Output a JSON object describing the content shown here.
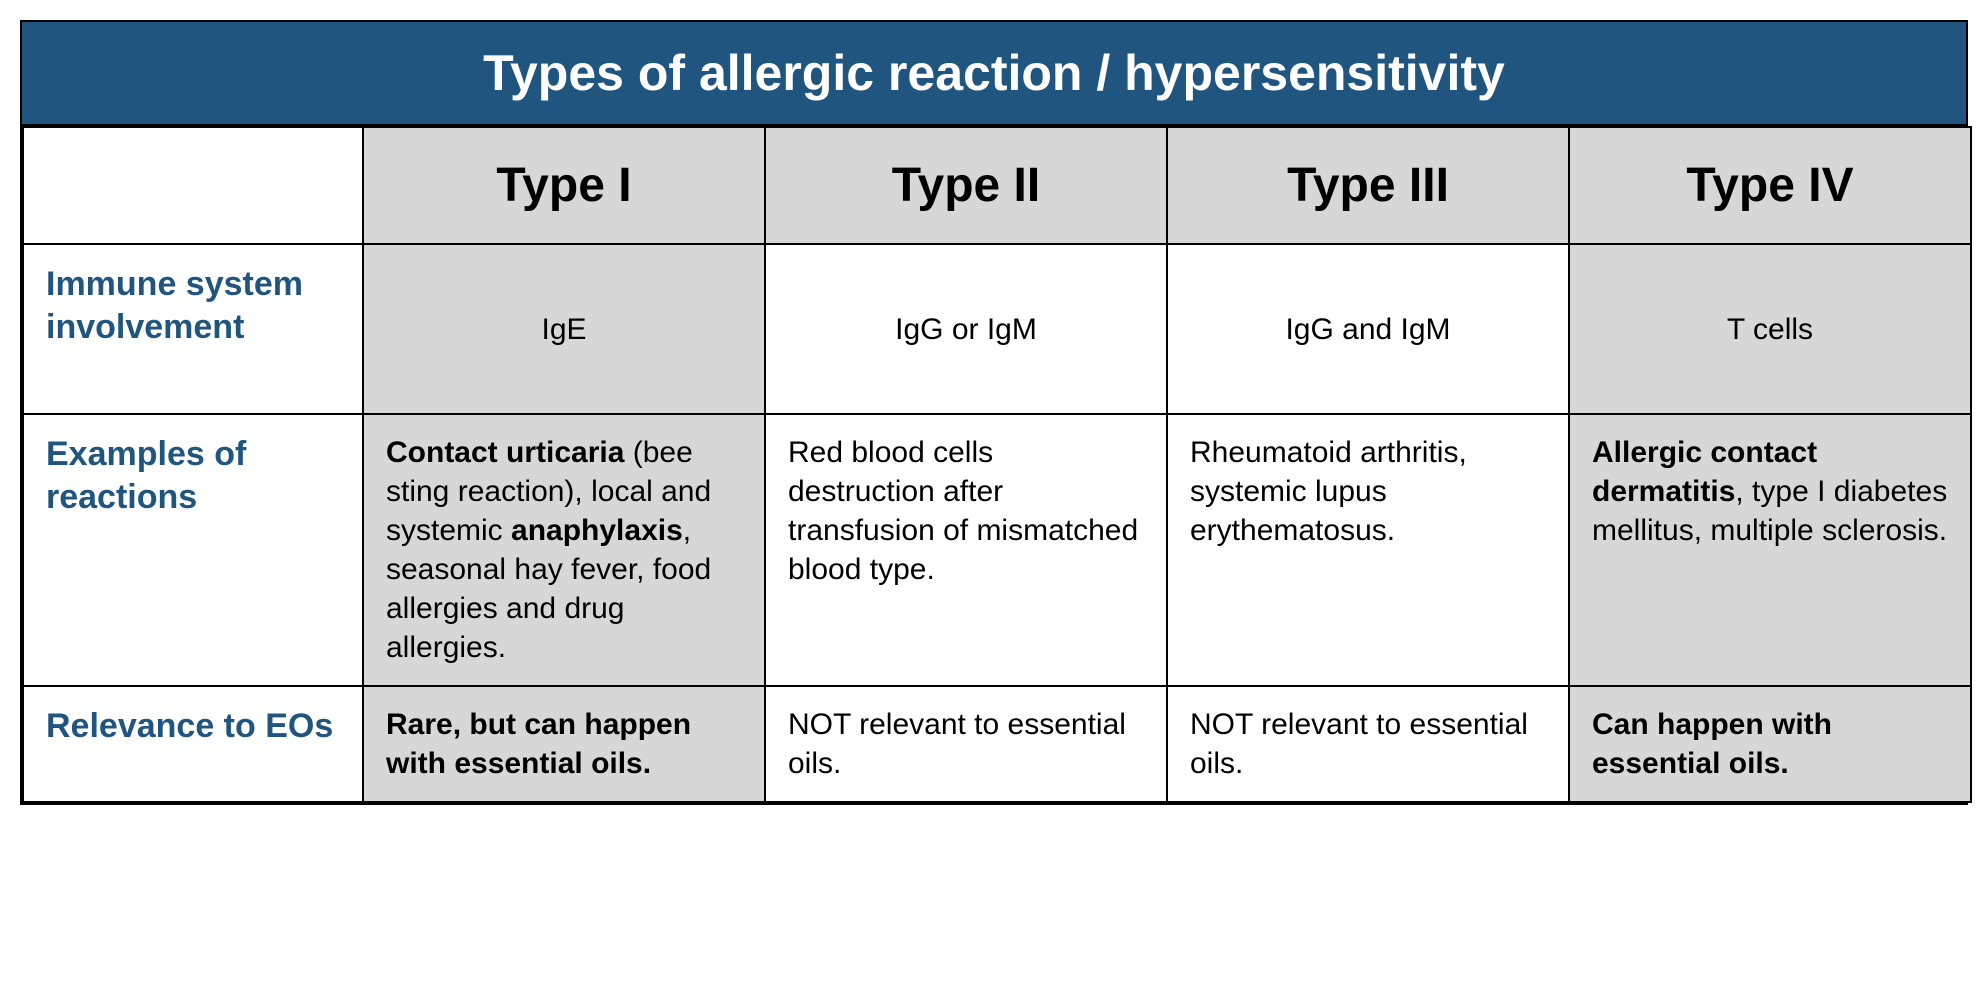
{
  "title": "Types of allergic reaction / hypersensitivity",
  "columns": [
    "Type I",
    "Type II",
    "Type III",
    "Type IV"
  ],
  "row_labels": {
    "immune": "Immune system involvement",
    "examples": "Examples of reactions",
    "eo": "Relevance to EOs"
  },
  "immune": {
    "type1": "IgE",
    "type2": "IgG or IgM",
    "type3": "IgG and IgM",
    "type4": "T cells"
  },
  "examples": {
    "type1": {
      "bold1": "Contact urticaria",
      "plain1": " (bee sting reaction), local and systemic ",
      "bold2": "anaphylaxis",
      "plain2": ", seasonal hay fever, food allergies and drug allergies."
    },
    "type2": "Red blood cells destruction after transfusion of mismatched blood type.",
    "type3": "Rheumatoid arthritis, systemic lupus erythematosus.",
    "type4": {
      "bold1": "Allergic contact dermatitis",
      "plain1": ", type I diabetes mellitus, multiple sclerosis."
    }
  },
  "eo": {
    "type1": "Rare, but can happen with essential oils.",
    "type2": "NOT relevant to essential oils.",
    "type3": "NOT relevant to essential oils.",
    "type4": "Can happen with essential oils."
  },
  "colors": {
    "header_bg": "#20557f",
    "header_text": "#ffffff",
    "shade_bg": "#d7d7d7",
    "border": "#000000",
    "rowlabel_text": "#20557f"
  },
  "font_sizes_pt": {
    "title": 50,
    "column_header": 48,
    "row_label": 34,
    "body": 30
  }
}
